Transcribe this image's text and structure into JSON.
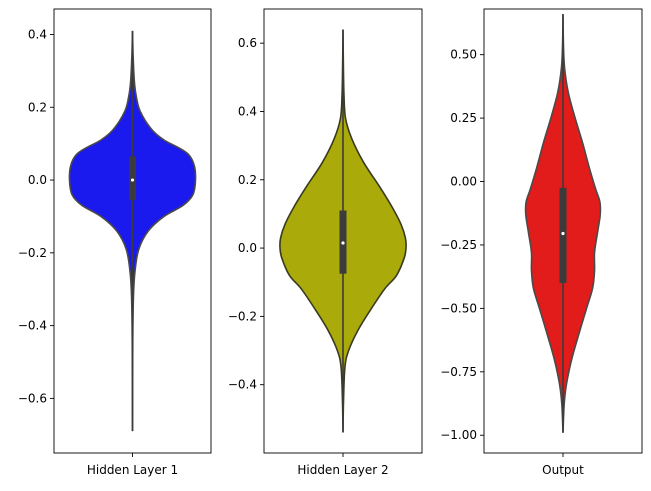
{
  "chart_data": [
    {
      "type": "violin",
      "xlabel": "Hidden Layer 1",
      "color": "#1a1aee",
      "outline": "#4a4a4a",
      "ylim": [
        -0.75,
        0.47
      ],
      "yticks": [
        0.4,
        0.2,
        0.0,
        -0.2,
        -0.4,
        -0.6
      ],
      "ytick_labels": [
        "0.4",
        "0.2",
        "0.0",
        "−0.2",
        "−0.4",
        "−0.6"
      ],
      "whisker": [
        -0.69,
        0.41
      ],
      "quartiles": [
        -0.055,
        0.065
      ],
      "median": 0.0,
      "density_profile": [
        {
          "y": 0.41,
          "w": 0.0
        },
        {
          "y": 0.34,
          "w": 0.01
        },
        {
          "y": 0.27,
          "w": 0.03
        },
        {
          "y": 0.23,
          "w": 0.06
        },
        {
          "y": 0.19,
          "w": 0.12
        },
        {
          "y": 0.14,
          "w": 0.3
        },
        {
          "y": 0.11,
          "w": 0.5
        },
        {
          "y": 0.09,
          "w": 0.72
        },
        {
          "y": 0.07,
          "w": 0.89
        },
        {
          "y": 0.04,
          "w": 0.98
        },
        {
          "y": 0.0,
          "w": 1.0
        },
        {
          "y": -0.04,
          "w": 0.96
        },
        {
          "y": -0.07,
          "w": 0.8
        },
        {
          "y": -0.1,
          "w": 0.5
        },
        {
          "y": -0.14,
          "w": 0.25
        },
        {
          "y": -0.19,
          "w": 0.1
        },
        {
          "y": -0.25,
          "w": 0.04
        },
        {
          "y": -0.32,
          "w": 0.015
        },
        {
          "y": -0.45,
          "w": 0.004
        },
        {
          "y": -0.69,
          "w": 0.0
        }
      ]
    },
    {
      "type": "violin",
      "xlabel": "Hidden Layer 2",
      "color": "#aaaa0a",
      "outline": "#3a3a20",
      "ylim": [
        -0.6,
        0.7
      ],
      "yticks": [
        0.6,
        0.4,
        0.2,
        0.0,
        -0.2,
        -0.4
      ],
      "ytick_labels": [
        "0.6",
        "0.4",
        "0.2",
        "0.0",
        "−0.2",
        "−0.4"
      ],
      "whisker": [
        -0.54,
        0.64
      ],
      "quartiles": [
        -0.075,
        0.11
      ],
      "median": 0.015,
      "density_profile": [
        {
          "y": 0.64,
          "w": 0.0
        },
        {
          "y": 0.55,
          "w": 0.005
        },
        {
          "y": 0.45,
          "w": 0.015
        },
        {
          "y": 0.38,
          "w": 0.04
        },
        {
          "y": 0.32,
          "w": 0.14
        },
        {
          "y": 0.25,
          "w": 0.33
        },
        {
          "y": 0.18,
          "w": 0.58
        },
        {
          "y": 0.12,
          "w": 0.78
        },
        {
          "y": 0.07,
          "w": 0.92
        },
        {
          "y": 0.03,
          "w": 0.99
        },
        {
          "y": 0.0,
          "w": 1.0
        },
        {
          "y": -0.03,
          "w": 0.97
        },
        {
          "y": -0.08,
          "w": 0.85
        },
        {
          "y": -0.12,
          "w": 0.66
        },
        {
          "y": -0.18,
          "w": 0.44
        },
        {
          "y": -0.24,
          "w": 0.24
        },
        {
          "y": -0.3,
          "w": 0.09
        },
        {
          "y": -0.35,
          "w": 0.03
        },
        {
          "y": -0.45,
          "w": 0.008
        },
        {
          "y": -0.54,
          "w": 0.0
        }
      ]
    },
    {
      "type": "violin",
      "xlabel": "Output",
      "color": "#e21b1b",
      "outline": "#4a4a4a",
      "ylim": [
        -1.07,
        0.68
      ],
      "yticks": [
        0.5,
        0.25,
        0.0,
        -0.25,
        -0.5,
        -0.75,
        -1.0
      ],
      "ytick_labels": [
        "0.50",
        "0.25",
        "0.00",
        "−0.25",
        "−0.50",
        "−0.75",
        "−1.00"
      ],
      "whisker": [
        -0.99,
        0.66
      ],
      "quartiles": [
        -0.4,
        -0.025
      ],
      "median": -0.205,
      "density_profile": [
        {
          "y": 0.66,
          "w": 0.0
        },
        {
          "y": 0.55,
          "w": 0.01
        },
        {
          "y": 0.45,
          "w": 0.04
        },
        {
          "y": 0.35,
          "w": 0.14
        },
        {
          "y": 0.25,
          "w": 0.32
        },
        {
          "y": 0.15,
          "w": 0.52
        },
        {
          "y": 0.05,
          "w": 0.7
        },
        {
          "y": -0.03,
          "w": 0.86
        },
        {
          "y": -0.08,
          "w": 0.97
        },
        {
          "y": -0.13,
          "w": 0.98
        },
        {
          "y": -0.2,
          "w": 0.91
        },
        {
          "y": -0.28,
          "w": 0.83
        },
        {
          "y": -0.35,
          "w": 0.83
        },
        {
          "y": -0.42,
          "w": 0.78
        },
        {
          "y": -0.5,
          "w": 0.62
        },
        {
          "y": -0.6,
          "w": 0.42
        },
        {
          "y": -0.7,
          "w": 0.23
        },
        {
          "y": -0.8,
          "w": 0.09
        },
        {
          "y": -0.88,
          "w": 0.03
        },
        {
          "y": -0.99,
          "w": 0.0
        }
      ]
    }
  ]
}
